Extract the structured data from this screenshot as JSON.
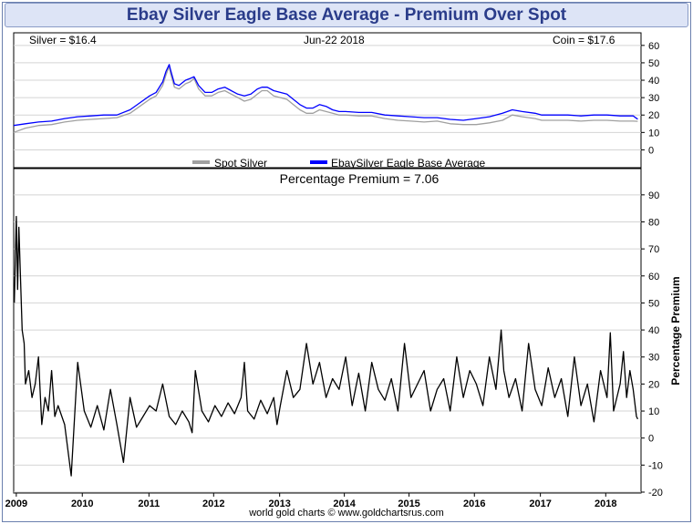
{
  "title": "Ebay Silver Eagle Base Average - Premium Over Spot",
  "header": {
    "silver": "Silver = $16.4",
    "date": "Jun-22  2018",
    "coin": "Coin = $17.6"
  },
  "legend": {
    "spot": "Spot Silver",
    "eagle": "EbaySilver Eagle Base Average"
  },
  "premium_label": "Percentage Premium = 7.06",
  "ylabel_bottom": "Percentage Premium",
  "credit": "world gold charts © www.goldchartsrus.com",
  "colors": {
    "spot": "#a0a0a0",
    "eagle": "#0000ff",
    "premium": "#000000",
    "title": "#2a3c8a"
  },
  "chart_data": [
    {
      "type": "line",
      "x_tick_labels": [
        "2009",
        "2010",
        "2011",
        "2012",
        "2013",
        "2014",
        "2015",
        "2016",
        "2017",
        "2018"
      ],
      "x_tick_positions": [
        2008.96,
        2009.97,
        2010.99,
        2011.98,
        2012.99,
        2013.98,
        2014.97,
        2015.97,
        2016.98,
        2017.98
      ],
      "xlim": [
        2008.92,
        2018.52
      ],
      "ylim": [
        -5,
        62
      ],
      "y_ticks": [
        0,
        10,
        20,
        30,
        40,
        50,
        60
      ],
      "series": [
        {
          "name": "Spot Silver",
          "x": [
            2008.92,
            2009.1,
            2009.3,
            2009.5,
            2009.7,
            2009.9,
            2010.1,
            2010.3,
            2010.5,
            2010.7,
            2010.85,
            2011.0,
            2011.1,
            2011.2,
            2011.25,
            2011.3,
            2011.32,
            2011.38,
            2011.45,
            2011.55,
            2011.62,
            2011.68,
            2011.75,
            2011.85,
            2011.95,
            2012.05,
            2012.15,
            2012.25,
            2012.35,
            2012.45,
            2012.55,
            2012.65,
            2012.72,
            2012.8,
            2012.9,
            2013.0,
            2013.1,
            2013.2,
            2013.3,
            2013.4,
            2013.5,
            2013.6,
            2013.7,
            2013.8,
            2013.9,
            2014.0,
            2014.2,
            2014.4,
            2014.6,
            2014.8,
            2015.0,
            2015.2,
            2015.4,
            2015.6,
            2015.8,
            2016.0,
            2016.2,
            2016.4,
            2016.55,
            2016.7,
            2016.9,
            2017.0,
            2017.2,
            2017.4,
            2017.6,
            2017.8,
            2018.0,
            2018.2,
            2018.4,
            2018.47
          ],
          "y": [
            10,
            12.5,
            14,
            14.5,
            16,
            17,
            17.5,
            18,
            18.5,
            21,
            25,
            29,
            31,
            37,
            43,
            48,
            44,
            36,
            35,
            38,
            39,
            41,
            35,
            31,
            31,
            33,
            34,
            32,
            30,
            28,
            29,
            32,
            34,
            34,
            31,
            30,
            29,
            26,
            23,
            21,
            21,
            23,
            22,
            21,
            20,
            20,
            19.5,
            19.5,
            18,
            17,
            16.5,
            16,
            16.5,
            15,
            14.5,
            14.5,
            15.5,
            17,
            20,
            19,
            18,
            17,
            17,
            17,
            16.5,
            17,
            17,
            16.5,
            16.5,
            16.4
          ]
        },
        {
          "name": "EbaySilver Eagle Base Average",
          "x": [
            2008.92,
            2009.1,
            2009.3,
            2009.5,
            2009.7,
            2009.9,
            2010.1,
            2010.3,
            2010.5,
            2010.7,
            2010.85,
            2011.0,
            2011.1,
            2011.2,
            2011.25,
            2011.3,
            2011.32,
            2011.38,
            2011.45,
            2011.55,
            2011.62,
            2011.68,
            2011.75,
            2011.85,
            2011.95,
            2012.05,
            2012.15,
            2012.25,
            2012.35,
            2012.45,
            2012.55,
            2012.65,
            2012.72,
            2012.8,
            2012.9,
            2013.0,
            2013.1,
            2013.2,
            2013.3,
            2013.4,
            2013.5,
            2013.6,
            2013.7,
            2013.8,
            2013.9,
            2014.0,
            2014.2,
            2014.4,
            2014.6,
            2014.8,
            2015.0,
            2015.2,
            2015.4,
            2015.6,
            2015.8,
            2016.0,
            2016.2,
            2016.4,
            2016.55,
            2016.7,
            2016.9,
            2017.0,
            2017.2,
            2017.4,
            2017.6,
            2017.8,
            2018.0,
            2018.2,
            2018.4,
            2018.47
          ],
          "y": [
            14,
            15,
            16,
            16.5,
            18,
            19,
            19.5,
            20,
            20,
            23,
            27,
            31,
            33,
            39,
            45,
            49,
            46,
            38,
            37,
            40,
            41,
            42,
            37,
            33,
            33,
            35,
            36,
            34,
            32,
            31,
            32,
            35,
            36,
            36,
            34,
            33,
            32,
            29,
            26,
            24,
            24,
            26,
            25,
            23,
            22,
            22,
            21.5,
            21.5,
            20,
            19.5,
            19,
            18.5,
            18.5,
            17.5,
            17,
            18,
            19,
            21,
            23,
            22,
            21,
            20,
            20,
            20,
            19.5,
            20,
            20,
            19.5,
            19.5,
            17.6
          ]
        }
      ]
    },
    {
      "type": "line",
      "xlim": [
        2008.92,
        2018.52
      ],
      "ylim": [
        -20,
        95
      ],
      "y_ticks": [
        -20,
        -10,
        0,
        10,
        20,
        30,
        40,
        50,
        60,
        70,
        80,
        90
      ],
      "series": [
        {
          "name": "Percentage Premium",
          "x": [
            2008.93,
            2008.96,
            2008.98,
            2009.0,
            2009.05,
            2009.08,
            2009.1,
            2009.15,
            2009.2,
            2009.25,
            2009.3,
            2009.35,
            2009.4,
            2009.45,
            2009.5,
            2009.55,
            2009.6,
            2009.7,
            2009.8,
            2009.9,
            2010.0,
            2010.1,
            2010.2,
            2010.3,
            2010.4,
            2010.5,
            2010.6,
            2010.7,
            2010.8,
            2010.9,
            2011.0,
            2011.1,
            2011.2,
            2011.3,
            2011.4,
            2011.5,
            2011.6,
            2011.65,
            2011.7,
            2011.8,
            2011.9,
            2012.0,
            2012.1,
            2012.2,
            2012.3,
            2012.4,
            2012.45,
            2012.5,
            2012.6,
            2012.7,
            2012.8,
            2012.9,
            2012.95,
            2013.0,
            2013.1,
            2013.2,
            2013.3,
            2013.4,
            2013.5,
            2013.6,
            2013.7,
            2013.8,
            2013.9,
            2014.0,
            2014.1,
            2014.2,
            2014.3,
            2014.4,
            2014.5,
            2014.6,
            2014.7,
            2014.8,
            2014.9,
            2015.0,
            2015.1,
            2015.2,
            2015.3,
            2015.4,
            2015.5,
            2015.6,
            2015.7,
            2015.8,
            2015.9,
            2016.0,
            2016.1,
            2016.2,
            2016.3,
            2016.38,
            2016.42,
            2016.5,
            2016.6,
            2016.7,
            2016.8,
            2016.9,
            2017.0,
            2017.1,
            2017.2,
            2017.3,
            2017.4,
            2017.5,
            2017.6,
            2017.7,
            2017.8,
            2017.9,
            2018.0,
            2018.05,
            2018.1,
            2018.2,
            2018.25,
            2018.3,
            2018.35,
            2018.4,
            2018.45,
            2018.47
          ],
          "y": [
            50,
            82,
            55,
            78,
            40,
            35,
            20,
            25,
            15,
            20,
            30,
            5,
            15,
            10,
            25,
            8,
            12,
            5,
            -14,
            28,
            10,
            4,
            12,
            3,
            18,
            5,
            -9,
            15,
            4,
            8,
            12,
            10,
            20,
            8,
            5,
            10,
            6,
            2,
            25,
            10,
            6,
            12,
            8,
            13,
            9,
            15,
            28,
            10,
            7,
            14,
            9,
            15,
            5,
            12,
            25,
            15,
            18,
            35,
            20,
            28,
            15,
            22,
            18,
            30,
            12,
            24,
            10,
            28,
            18,
            14,
            22,
            10,
            35,
            15,
            20,
            25,
            10,
            18,
            22,
            10,
            30,
            15,
            25,
            20,
            12,
            30,
            18,
            40,
            25,
            15,
            22,
            10,
            35,
            18,
            12,
            26,
            15,
            22,
            8,
            30,
            12,
            20,
            6,
            25,
            15,
            39,
            10,
            20,
            32,
            15,
            25,
            18,
            8,
            7.06
          ]
        }
      ]
    }
  ]
}
